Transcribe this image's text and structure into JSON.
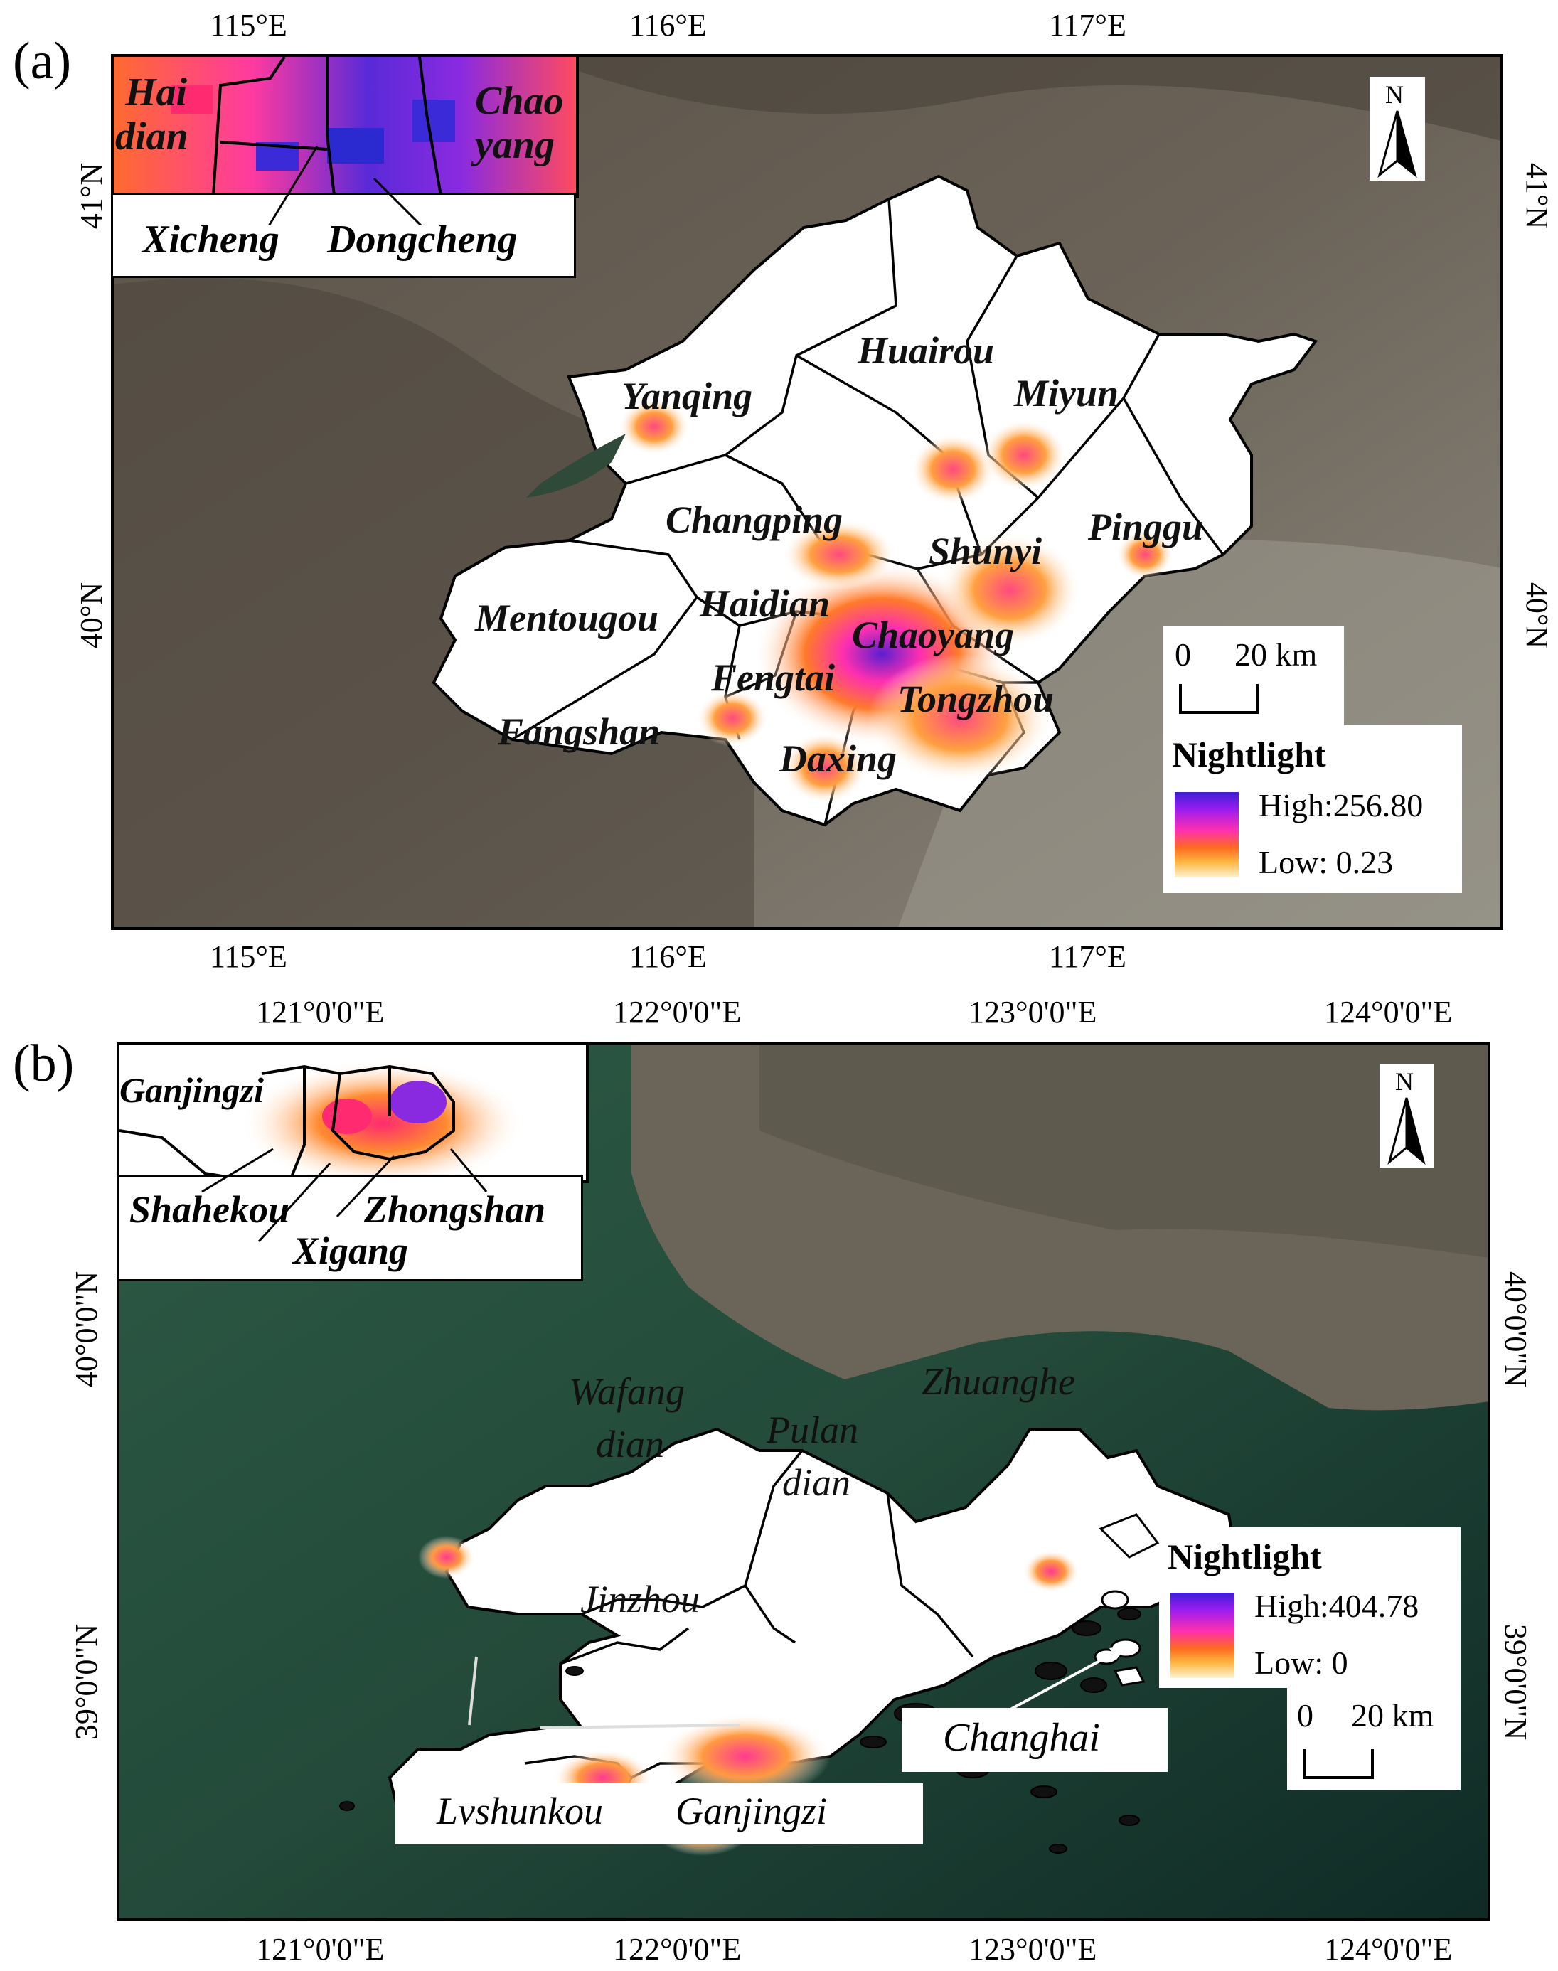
{
  "panel_a": {
    "label": "(a)",
    "top_ticks": [
      "115°E",
      "116°E",
      "117°E"
    ],
    "bottom_ticks": [
      "115°E",
      "116°E",
      "117°E"
    ],
    "left_ticks": [
      "41°N",
      "40°N"
    ],
    "right_ticks": [
      "41°N",
      "40°N"
    ],
    "inset": {
      "map_labels": [
        "Hai",
        "dian",
        "Chao",
        "yang"
      ],
      "callouts": [
        "Xicheng",
        "Dongcheng"
      ]
    },
    "districts": [
      "Huairou",
      "Yanqing",
      "Miyun",
      "Changping",
      "Shunyi",
      "Pinggu",
      "Mentougou",
      "Haidian",
      "Chaoyang",
      "Fengtai",
      "Tongzhou",
      "Fangshan",
      "Daxing"
    ],
    "north": "N",
    "scale": {
      "zero": "0",
      "distance": "20 km"
    },
    "legend": {
      "title": "Nightlight",
      "high": "High:256.80",
      "low": "Low: 0.23",
      "colors": [
        "#3b1fd6",
        "#ff2fb0",
        "#ff6a20",
        "#fff3d0"
      ]
    }
  },
  "panel_b": {
    "label": "(b)",
    "top_ticks": [
      "121°0'0\"E",
      "122°0'0\"E",
      "123°0'0\"E",
      "124°0'0\"E"
    ],
    "bottom_ticks": [
      "121°0'0\"E",
      "122°0'0\"E",
      "123°0'0\"E",
      "124°0'0\"E"
    ],
    "left_ticks": [
      "40°0'0\"N",
      "39°0'0\"N"
    ],
    "right_ticks": [
      "40°0'0\"N",
      "39°0'0\"N"
    ],
    "inset": {
      "map_labels": [
        "Ganjingzi"
      ],
      "callouts": [
        "Shahekou",
        "Zhongshan",
        "Xigang"
      ]
    },
    "districts": [
      "Wafang",
      "dian",
      "Pulan",
      "dian",
      "Zhuanghe",
      "Jinzhou"
    ],
    "bottom_callouts": [
      "Lvshunkou",
      "Ganjingzi"
    ],
    "changhai": "Changhai",
    "north": "N",
    "scale": {
      "zero": "0",
      "distance": "20 km"
    },
    "legend": {
      "title": "Nightlight",
      "high": "High:404.78",
      "low": "Low: 0",
      "colors": [
        "#3b1fd6",
        "#ff2fb0",
        "#ff6a20",
        "#fff3d0"
      ]
    }
  }
}
